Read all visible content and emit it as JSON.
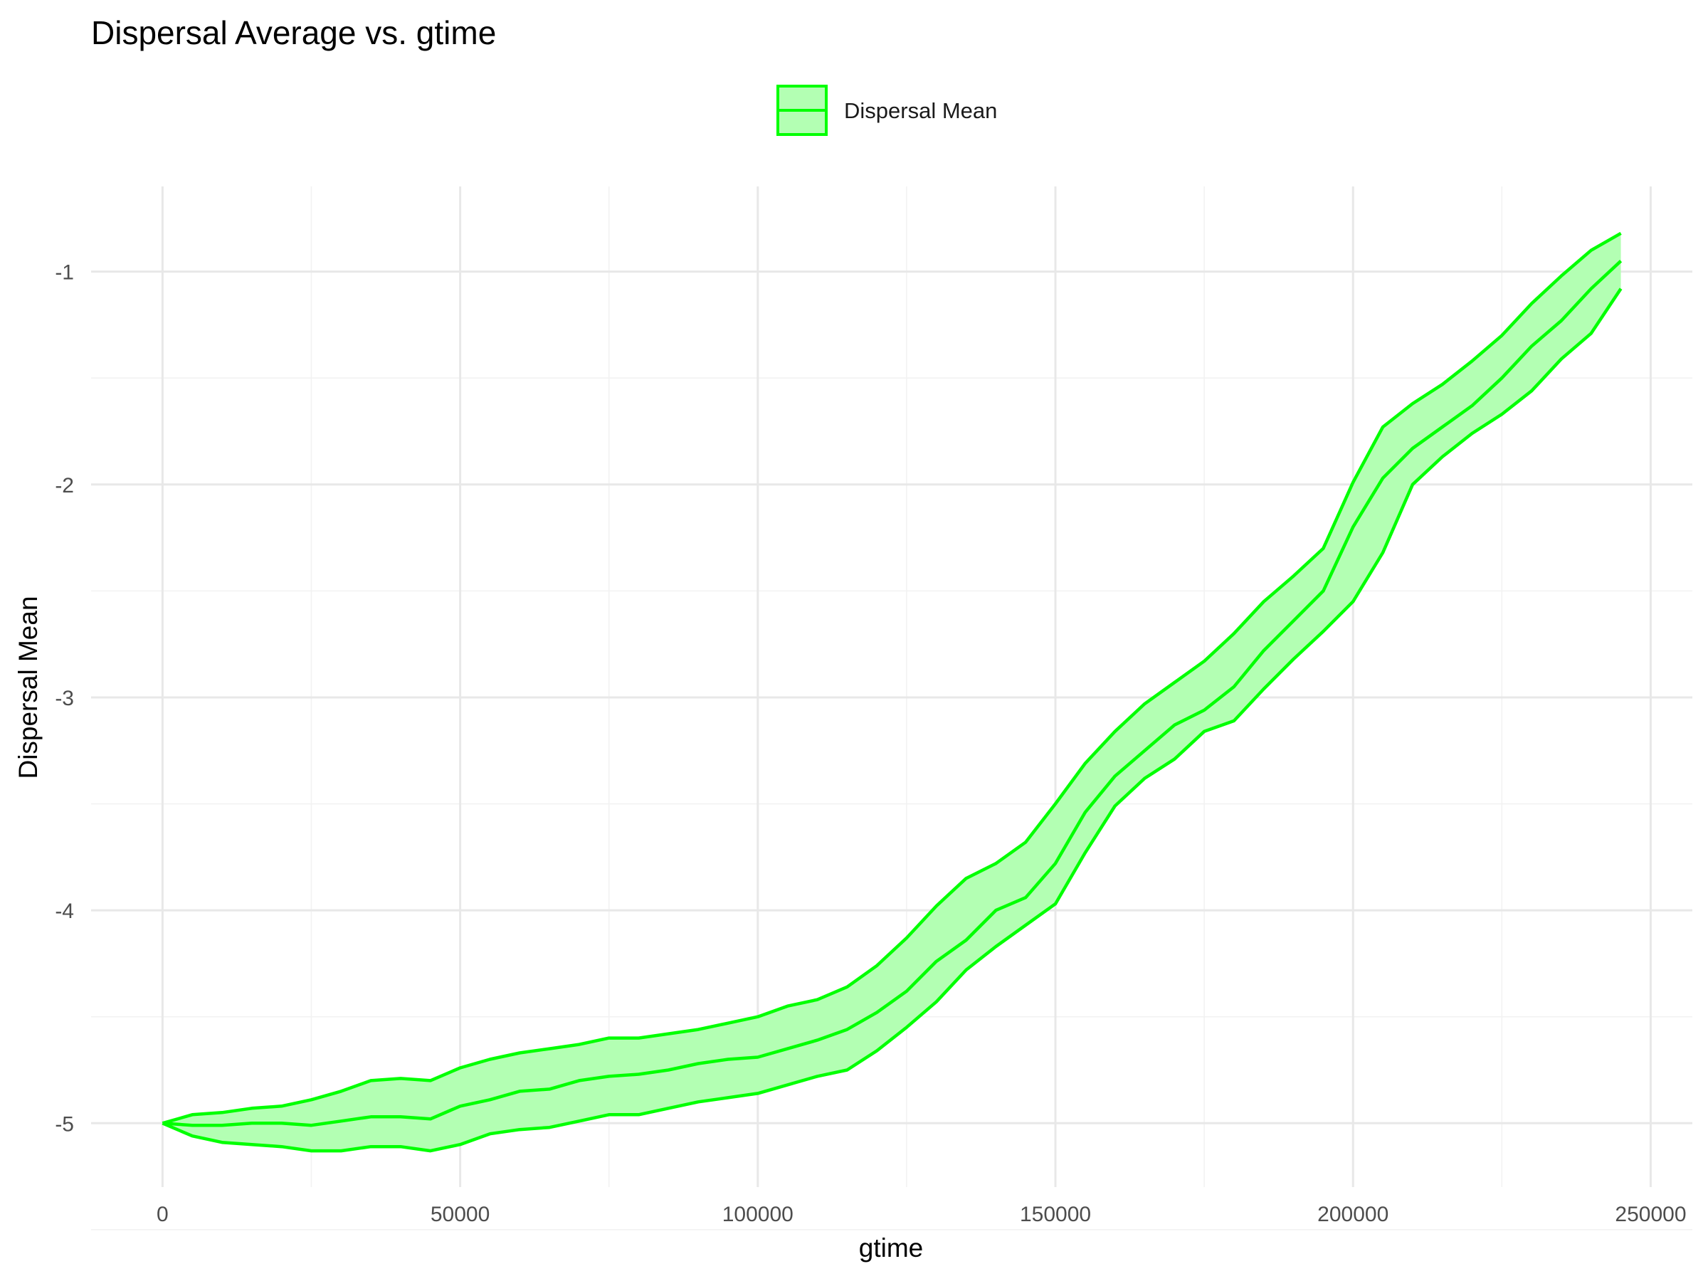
{
  "chart_data": {
    "type": "line",
    "title": "Dispersal Average vs. gtime",
    "xlabel": "gtime",
    "ylabel": "Dispersal Mean",
    "xlim": [
      -12000,
      257000
    ],
    "ylim": [
      -5.3,
      -0.6
    ],
    "x_ticks": [
      0,
      50000,
      100000,
      150000,
      200000,
      250000
    ],
    "x_tick_labels": [
      "0",
      "50000",
      "100000",
      "150000",
      "200000",
      "250000"
    ],
    "y_ticks": [
      -5,
      -4,
      -3,
      -2,
      -1
    ],
    "y_tick_labels": [
      "-5",
      "-4",
      "-3",
      "-2",
      "-1"
    ],
    "grid": true,
    "legend": {
      "position": "top",
      "label": "Dispersal Mean"
    },
    "colors": {
      "line": "#00ff00",
      "ribbon_fill": "#b3ffb3"
    },
    "series": [
      {
        "name": "Dispersal Mean",
        "x": [
          0,
          5000,
          10000,
          15000,
          20000,
          25000,
          30000,
          35000,
          40000,
          45000,
          50000,
          55000,
          60000,
          65000,
          70000,
          75000,
          80000,
          85000,
          90000,
          95000,
          100000,
          105000,
          110000,
          115000,
          120000,
          125000,
          130000,
          135000,
          140000,
          145000,
          150000,
          155000,
          160000,
          165000,
          170000,
          175000,
          180000,
          185000,
          190000,
          195000,
          200000,
          205000,
          210000,
          215000,
          220000,
          225000,
          230000,
          235000,
          240000,
          245000
        ],
        "mean": [
          -5.0,
          -5.01,
          -5.01,
          -5.0,
          -5.0,
          -5.01,
          -4.99,
          -4.97,
          -4.97,
          -4.98,
          -4.92,
          -4.89,
          -4.85,
          -4.84,
          -4.8,
          -4.78,
          -4.77,
          -4.75,
          -4.72,
          -4.7,
          -4.69,
          -4.65,
          -4.61,
          -4.56,
          -4.48,
          -4.38,
          -4.24,
          -4.14,
          -4.0,
          -3.94,
          -3.78,
          -3.54,
          -3.37,
          -3.25,
          -3.13,
          -3.06,
          -2.95,
          -2.78,
          -2.64,
          -2.5,
          -2.2,
          -1.97,
          -1.83,
          -1.73,
          -1.63,
          -1.5,
          -1.35,
          -1.23,
          -1.08,
          -0.95
        ],
        "upper": [
          -5.0,
          -4.96,
          -4.95,
          -4.93,
          -4.92,
          -4.89,
          -4.85,
          -4.8,
          -4.79,
          -4.8,
          -4.74,
          -4.7,
          -4.67,
          -4.65,
          -4.63,
          -4.6,
          -4.6,
          -4.58,
          -4.56,
          -4.53,
          -4.5,
          -4.45,
          -4.42,
          -4.36,
          -4.26,
          -4.13,
          -3.98,
          -3.85,
          -3.78,
          -3.68,
          -3.5,
          -3.31,
          -3.16,
          -3.03,
          -2.93,
          -2.83,
          -2.7,
          -2.55,
          -2.43,
          -2.3,
          -1.99,
          -1.73,
          -1.62,
          -1.53,
          -1.42,
          -1.3,
          -1.15,
          -1.02,
          -0.9,
          -0.82
        ],
        "lower": [
          -5.0,
          -5.06,
          -5.09,
          -5.1,
          -5.11,
          -5.13,
          -5.13,
          -5.11,
          -5.11,
          -5.13,
          -5.1,
          -5.05,
          -5.03,
          -5.02,
          -4.99,
          -4.96,
          -4.96,
          -4.93,
          -4.9,
          -4.88,
          -4.86,
          -4.82,
          -4.78,
          -4.75,
          -4.66,
          -4.55,
          -4.43,
          -4.28,
          -4.17,
          -4.07,
          -3.97,
          -3.73,
          -3.51,
          -3.38,
          -3.29,
          -3.16,
          -3.11,
          -2.96,
          -2.82,
          -2.69,
          -2.55,
          -2.32,
          -2.0,
          -1.87,
          -1.76,
          -1.67,
          -1.56,
          -1.41,
          -1.29,
          -1.08
        ]
      }
    ]
  }
}
